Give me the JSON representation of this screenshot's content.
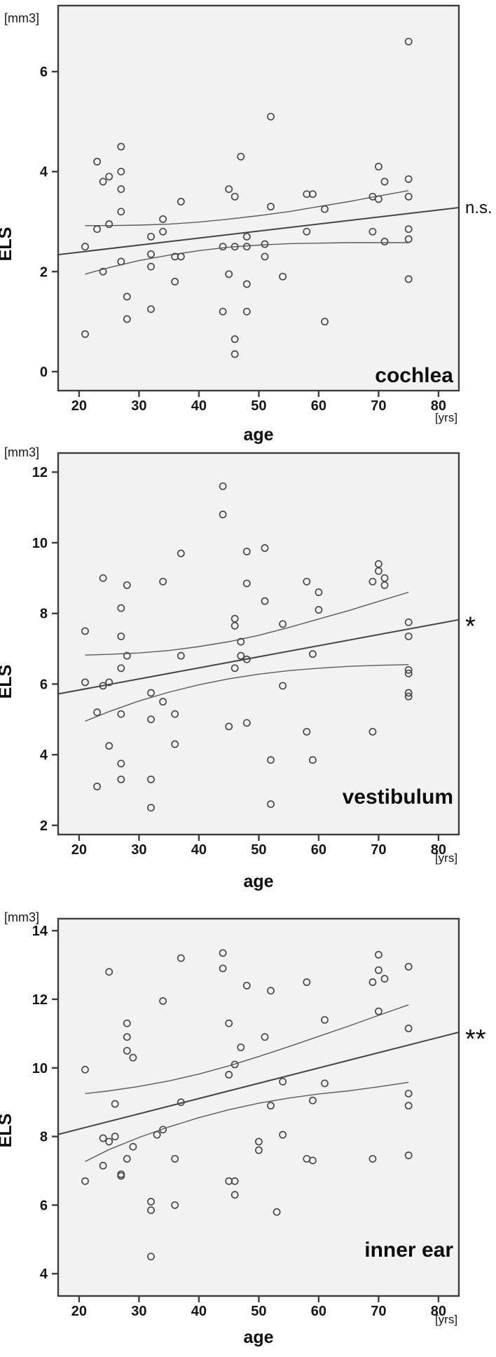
{
  "figure": {
    "description": "Three stacked scatter plots of endolymphatic space (ELS) volume versus age with linear fit and confidence bands",
    "background": "#ffffff"
  },
  "colors": {
    "plot_bg": "#f2f2f2",
    "frame": "#3d3d3d",
    "marker": "#4a4a4a",
    "fit_line": "#454545",
    "ci_line": "#5a5a5a",
    "text": "#111111"
  },
  "chart_data": [
    {
      "type": "scatter",
      "title": "cochlea",
      "significance": "n.s.",
      "xlabel": "age",
      "x_unit": "[yrs]",
      "ylabel": "ELS",
      "y_unit": "[mm3]",
      "x_ticks": [
        20,
        30,
        40,
        50,
        60,
        70,
        80
      ],
      "y_ticks": [
        0,
        2,
        4,
        6
      ],
      "x_range": [
        16.5,
        83.4
      ],
      "y_range": [
        -0.38,
        7.32
      ],
      "legend": "none",
      "grid": false,
      "points": [
        [
          75,
          6.6
        ],
        [
          52,
          5.1
        ],
        [
          27,
          4.5
        ],
        [
          47,
          4.3
        ],
        [
          23,
          4.2
        ],
        [
          70,
          4.1
        ],
        [
          27,
          4.0
        ],
        [
          25,
          3.9
        ],
        [
          75,
          3.85
        ],
        [
          24,
          3.8
        ],
        [
          71,
          3.8
        ],
        [
          27,
          3.65
        ],
        [
          45,
          3.65
        ],
        [
          58,
          3.55
        ],
        [
          59,
          3.55
        ],
        [
          46,
          3.5
        ],
        [
          69,
          3.5
        ],
        [
          75,
          3.5
        ],
        [
          70,
          3.45
        ],
        [
          37,
          3.4
        ],
        [
          52,
          3.3
        ],
        [
          61,
          3.25
        ],
        [
          27,
          3.2
        ],
        [
          34,
          3.05
        ],
        [
          25,
          2.95
        ],
        [
          23,
          2.85
        ],
        [
          75,
          2.85
        ],
        [
          34,
          2.8
        ],
        [
          58,
          2.8
        ],
        [
          69,
          2.8
        ],
        [
          32,
          2.7
        ],
        [
          48,
          2.7
        ],
        [
          75,
          2.65
        ],
        [
          71,
          2.6
        ],
        [
          51,
          2.55
        ],
        [
          21,
          2.5
        ],
        [
          44,
          2.5
        ],
        [
          46,
          2.5
        ],
        [
          48,
          2.5
        ],
        [
          32,
          2.35
        ],
        [
          36,
          2.3
        ],
        [
          37,
          2.3
        ],
        [
          51,
          2.3
        ],
        [
          27,
          2.2
        ],
        [
          32,
          2.1
        ],
        [
          24,
          2.0
        ],
        [
          45,
          1.95
        ],
        [
          54,
          1.9
        ],
        [
          75,
          1.85
        ],
        [
          36,
          1.8
        ],
        [
          48,
          1.75
        ],
        [
          28,
          1.5
        ],
        [
          32,
          1.25
        ],
        [
          44,
          1.2
        ],
        [
          48,
          1.2
        ],
        [
          28,
          1.05
        ],
        [
          61,
          1.0
        ],
        [
          21,
          0.75
        ],
        [
          46,
          0.65
        ],
        [
          46,
          0.35
        ]
      ],
      "fit_line": [
        [
          16.5,
          2.34
        ],
        [
          83.4,
          3.28
        ]
      ],
      "ci_upper": [
        [
          21,
          2.92
        ],
        [
          25,
          2.92
        ],
        [
          30,
          2.93
        ],
        [
          35,
          2.95
        ],
        [
          40,
          2.99
        ],
        [
          45,
          3.05
        ],
        [
          50,
          3.12
        ],
        [
          55,
          3.2
        ],
        [
          60,
          3.3
        ],
        [
          65,
          3.4
        ],
        [
          70,
          3.51
        ],
        [
          75,
          3.62
        ]
      ],
      "ci_lower": [
        [
          21,
          1.95
        ],
        [
          25,
          2.08
        ],
        [
          30,
          2.22
        ],
        [
          35,
          2.33
        ],
        [
          40,
          2.42
        ],
        [
          45,
          2.49
        ],
        [
          50,
          2.53
        ],
        [
          55,
          2.56
        ],
        [
          60,
          2.57
        ],
        [
          65,
          2.58
        ],
        [
          70,
          2.58
        ],
        [
          75,
          2.58
        ]
      ]
    },
    {
      "type": "scatter",
      "title": "vestibulum",
      "significance": "*",
      "xlabel": "age",
      "x_unit": "[yrs]",
      "ylabel": "ELS",
      "y_unit": "[mm3]",
      "x_ticks": [
        20,
        30,
        40,
        50,
        60,
        70,
        80
      ],
      "y_ticks": [
        2,
        4,
        6,
        8,
        10,
        12
      ],
      "x_range": [
        16.5,
        83.4
      ],
      "y_range": [
        1.74,
        12.54
      ],
      "legend": "none",
      "grid": false,
      "points": [
        [
          44,
          11.6
        ],
        [
          44,
          10.8
        ],
        [
          51,
          9.85
        ],
        [
          48,
          9.75
        ],
        [
          37,
          9.7
        ],
        [
          70,
          9.4
        ],
        [
          70,
          9.2
        ],
        [
          71,
          9.0
        ],
        [
          24,
          9.0
        ],
        [
          69,
          8.9
        ],
        [
          34,
          8.9
        ],
        [
          58,
          8.9
        ],
        [
          48,
          8.85
        ],
        [
          71,
          8.8
        ],
        [
          28,
          8.8
        ],
        [
          60,
          8.6
        ],
        [
          51,
          8.35
        ],
        [
          27,
          8.15
        ],
        [
          60,
          8.1
        ],
        [
          46,
          7.85
        ],
        [
          75,
          7.75
        ],
        [
          54,
          7.7
        ],
        [
          46,
          7.65
        ],
        [
          21,
          7.5
        ],
        [
          27,
          7.35
        ],
        [
          75,
          7.35
        ],
        [
          47,
          7.2
        ],
        [
          59,
          6.85
        ],
        [
          28,
          6.8
        ],
        [
          37,
          6.8
        ],
        [
          47,
          6.8
        ],
        [
          48,
          6.7
        ],
        [
          46,
          6.45
        ],
        [
          27,
          6.45
        ],
        [
          75,
          6.4
        ],
        [
          75,
          6.3
        ],
        [
          21,
          6.05
        ],
        [
          25,
          6.05
        ],
        [
          24,
          5.95
        ],
        [
          54,
          5.95
        ],
        [
          32,
          5.75
        ],
        [
          75,
          5.75
        ],
        [
          75,
          5.65
        ],
        [
          34,
          5.5
        ],
        [
          23,
          5.2
        ],
        [
          27,
          5.15
        ],
        [
          36,
          5.15
        ],
        [
          32,
          5.0
        ],
        [
          48,
          4.9
        ],
        [
          45,
          4.8
        ],
        [
          58,
          4.65
        ],
        [
          69,
          4.65
        ],
        [
          36,
          4.3
        ],
        [
          25,
          4.25
        ],
        [
          52,
          3.85
        ],
        [
          59,
          3.85
        ],
        [
          27,
          3.75
        ],
        [
          27,
          3.3
        ],
        [
          32,
          3.3
        ],
        [
          23,
          3.1
        ],
        [
          52,
          2.6
        ],
        [
          32,
          2.5
        ]
      ],
      "fit_line": [
        [
          16.5,
          5.72
        ],
        [
          83.4,
          7.82
        ]
      ],
      "ci_upper": [
        [
          21,
          6.82
        ],
        [
          25,
          6.84
        ],
        [
          30,
          6.88
        ],
        [
          35,
          6.95
        ],
        [
          40,
          7.06
        ],
        [
          45,
          7.2
        ],
        [
          50,
          7.38
        ],
        [
          55,
          7.6
        ],
        [
          60,
          7.84
        ],
        [
          65,
          8.08
        ],
        [
          70,
          8.34
        ],
        [
          75,
          8.6
        ]
      ],
      "ci_lower": [
        [
          21,
          4.95
        ],
        [
          25,
          5.22
        ],
        [
          30,
          5.52
        ],
        [
          35,
          5.77
        ],
        [
          40,
          5.98
        ],
        [
          45,
          6.15
        ],
        [
          50,
          6.28
        ],
        [
          55,
          6.38
        ],
        [
          60,
          6.45
        ],
        [
          65,
          6.5
        ],
        [
          70,
          6.53
        ],
        [
          75,
          6.55
        ]
      ]
    },
    {
      "type": "scatter",
      "title": "inner ear",
      "significance": "**",
      "xlabel": "age",
      "x_unit": "[yrs]",
      "ylabel": "ELS",
      "y_unit": "[mm3]",
      "x_ticks": [
        20,
        30,
        40,
        50,
        60,
        70,
        80
      ],
      "y_ticks": [
        4,
        6,
        8,
        10,
        12,
        14
      ],
      "x_range": [
        16.5,
        83.4
      ],
      "y_range": [
        3.35,
        14.35
      ],
      "legend": "none",
      "grid": false,
      "points": [
        [
          44,
          13.35
        ],
        [
          70,
          13.3
        ],
        [
          37,
          13.2
        ],
        [
          75,
          12.95
        ],
        [
          44,
          12.9
        ],
        [
          70,
          12.85
        ],
        [
          25,
          12.8
        ],
        [
          71,
          12.6
        ],
        [
          69,
          12.5
        ],
        [
          58,
          12.5
        ],
        [
          48,
          12.4
        ],
        [
          52,
          12.25
        ],
        [
          34,
          11.95
        ],
        [
          70,
          11.65
        ],
        [
          61,
          11.4
        ],
        [
          45,
          11.3
        ],
        [
          28,
          11.3
        ],
        [
          75,
          11.15
        ],
        [
          51,
          10.9
        ],
        [
          28,
          10.9
        ],
        [
          47,
          10.6
        ],
        [
          28,
          10.5
        ],
        [
          29,
          10.3
        ],
        [
          46,
          10.1
        ],
        [
          21,
          9.95
        ],
        [
          45,
          9.8
        ],
        [
          54,
          9.6
        ],
        [
          61,
          9.55
        ],
        [
          75,
          9.25
        ],
        [
          59,
          9.05
        ],
        [
          37,
          9.0
        ],
        [
          26,
          8.95
        ],
        [
          52,
          8.9
        ],
        [
          75,
          8.9
        ],
        [
          34,
          8.2
        ],
        [
          33,
          8.05
        ],
        [
          54,
          8.05
        ],
        [
          26,
          8.0
        ],
        [
          24,
          7.95
        ],
        [
          50,
          7.85
        ],
        [
          25,
          7.85
        ],
        [
          29,
          7.7
        ],
        [
          50,
          7.6
        ],
        [
          75,
          7.45
        ],
        [
          36,
          7.35
        ],
        [
          28,
          7.35
        ],
        [
          58,
          7.35
        ],
        [
          69,
          7.35
        ],
        [
          59,
          7.3
        ],
        [
          24,
          7.15
        ],
        [
          27,
          6.9
        ],
        [
          27,
          6.85
        ],
        [
          45,
          6.7
        ],
        [
          46,
          6.7
        ],
        [
          21,
          6.7
        ],
        [
          46,
          6.3
        ],
        [
          32,
          6.1
        ],
        [
          36,
          6.0
        ],
        [
          32,
          5.85
        ],
        [
          53,
          5.8
        ],
        [
          32,
          4.5
        ]
      ],
      "fit_line": [
        [
          16.5,
          8.06
        ],
        [
          83.4,
          11.04
        ]
      ],
      "ci_upper": [
        [
          21,
          9.25
        ],
        [
          25,
          9.33
        ],
        [
          30,
          9.46
        ],
        [
          35,
          9.62
        ],
        [
          40,
          9.82
        ],
        [
          45,
          10.06
        ],
        [
          50,
          10.33
        ],
        [
          55,
          10.62
        ],
        [
          60,
          10.92
        ],
        [
          65,
          11.22
        ],
        [
          70,
          11.53
        ],
        [
          75,
          11.84
        ]
      ],
      "ci_lower": [
        [
          21,
          7.27
        ],
        [
          25,
          7.62
        ],
        [
          30,
          7.97
        ],
        [
          35,
          8.28
        ],
        [
          40,
          8.55
        ],
        [
          45,
          8.78
        ],
        [
          50,
          8.97
        ],
        [
          55,
          9.12
        ],
        [
          60,
          9.24
        ],
        [
          65,
          9.33
        ],
        [
          70,
          9.45
        ],
        [
          75,
          9.58
        ]
      ]
    }
  ]
}
